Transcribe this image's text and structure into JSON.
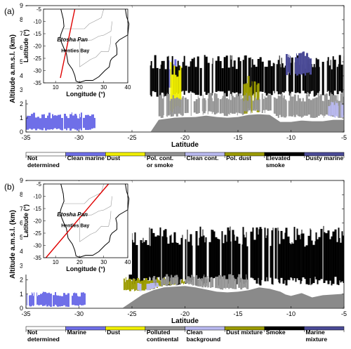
{
  "chart_data": [
    {
      "type": "heatmap",
      "panel_label": "(a)",
      "xlabel": "Latitude",
      "ylabel": "Altitude a.m.s.l. (km)",
      "xlim": [
        -35,
        -5
      ],
      "ylim": [
        0,
        9
      ],
      "xticks": [
        -35,
        -30,
        -25,
        -20,
        -15,
        -10,
        -5
      ],
      "yticks": [
        0,
        1,
        2,
        3,
        4,
        5,
        6,
        7,
        8,
        9
      ],
      "terrain": {
        "lat": [
          -35,
          -25,
          -23.3,
          -22.5,
          -21,
          -20,
          -19,
          -18,
          -17,
          -16,
          -15,
          -14,
          -13,
          -12,
          -11.5,
          -11,
          -10,
          -9,
          -8,
          -7,
          -6,
          -5
        ],
        "alt": [
          0,
          0,
          0.0,
          0.9,
          1.05,
          1.08,
          1.1,
          1.2,
          1.1,
          1.05,
          1.1,
          1.25,
          1.3,
          1.25,
          1.0,
          0.75,
          0.75,
          0.85,
          0.8,
          0.8,
          0.9,
          0.9
        ]
      },
      "layers": [
        {
          "class": "Clean marine",
          "lat_range": [
            -35,
            -28.5
          ],
          "alt_range": [
            0.1,
            1.4
          ]
        },
        {
          "class": "Clean marine",
          "lat_range": [
            -21.6,
            -21.0
          ],
          "alt_range": [
            3.0,
            5.2
          ]
        },
        {
          "class": "Elevated smoke",
          "lat_range": [
            -23.3,
            -5
          ],
          "alt_range": [
            2.5,
            5.5
          ]
        },
        {
          "class": "Dust",
          "lat_range": [
            -21.4,
            -20.4
          ],
          "alt_range": [
            1.3,
            5.3
          ]
        },
        {
          "class": "Pol. dust",
          "lat_range": [
            -14.5,
            -13.0
          ],
          "alt_range": [
            1.3,
            4.0
          ]
        },
        {
          "class": "Pol. cont. or smoke",
          "lat_range": [
            -22.5,
            -5
          ],
          "alt_range": [
            1.0,
            2.8
          ]
        },
        {
          "class": "Dusty marine",
          "lat_range": [
            -10.5,
            -8.0
          ],
          "alt_range": [
            4.0,
            5.8
          ]
        },
        {
          "class": "Clean cont.",
          "lat_range": [
            -6.5,
            -5.2
          ],
          "alt_range": [
            1.0,
            2.2
          ]
        }
      ],
      "inset": {
        "xlabel": "Longitude (°)",
        "ylabel": "Latitude (°)",
        "xlim": [
          5,
          40
        ],
        "ylim": [
          -35,
          -5
        ],
        "xticks": [
          10,
          20,
          30,
          40
        ],
        "yticks": [
          -5,
          -10,
          -15,
          -20,
          -25,
          -30,
          -35
        ],
        "labels": [
          "Etosha Pan",
          "Henties Bay"
        ],
        "track": {
          "lon": [
            12.0,
            18.0
          ],
          "lat": [
            -33.0,
            -5.0
          ]
        }
      },
      "legend": [
        "Not determined",
        "Clean marine",
        "Dust",
        "Pol. cont. or smoke",
        "Clean cont.",
        "Pol. dust",
        "Elevated smoke",
        "Dusty marine"
      ]
    },
    {
      "type": "heatmap",
      "panel_label": "(b)",
      "xlabel": "Latitude",
      "ylabel": "Altitude a.m.s.l. (km)",
      "xlim": [
        -35,
        -5
      ],
      "ylim": [
        0,
        9
      ],
      "xticks": [
        -35,
        -30,
        -25,
        -20,
        -15,
        -10,
        -5
      ],
      "yticks": [
        0,
        1,
        2,
        3,
        4,
        5,
        6,
        7,
        8,
        9
      ],
      "terrain": {
        "lat": [
          -35,
          -26,
          -25,
          -24,
          -23,
          -22,
          -21,
          -20,
          -19,
          -18,
          -17,
          -16,
          -15,
          -14,
          -13,
          -12,
          -11,
          -10.5,
          -10,
          -9,
          -8,
          -7,
          -6,
          -5
        ],
        "alt": [
          0,
          0,
          0.5,
          1.0,
          1.3,
          1.5,
          1.55,
          1.6,
          1.5,
          1.35,
          1.2,
          1.15,
          1.2,
          1.3,
          1.5,
          1.4,
          1.2,
          1.0,
          0.9,
          1.1,
          0.8,
          0.95,
          1.0,
          1.05
        ]
      },
      "layers": [
        {
          "class": "Marine",
          "lat_range": [
            -35,
            -29.5
          ],
          "alt_range": [
            0.1,
            1.2
          ]
        },
        {
          "class": "Smoke",
          "lat_range": [
            -25.3,
            -5
          ],
          "alt_range": [
            1.6,
            5.8
          ]
        },
        {
          "class": "Dust mixture",
          "lat_range": [
            -25.8,
            -20
          ],
          "alt_range": [
            1.2,
            2.2
          ]
        },
        {
          "class": "Polluted continental",
          "lat_range": [
            -23,
            -14
          ],
          "alt_range": [
            1.3,
            2.4
          ]
        },
        {
          "class": "Clean background",
          "lat_range": [
            -24.5,
            -22.5
          ],
          "alt_range": [
            1.2,
            1.8
          ]
        }
      ],
      "inset": {
        "xlabel": "Longitude (°)",
        "ylabel": "Latitude (°)",
        "xlim": [
          5,
          40
        ],
        "ylim": [
          -35,
          -5
        ],
        "xticks": [
          10,
          20,
          30,
          40
        ],
        "yticks": [
          -5,
          -10,
          -15,
          -20,
          -25,
          -30,
          -35
        ],
        "labels": [
          "Etosha Pan",
          "Henties Bay"
        ],
        "track": {
          "lon": [
            6.0,
            32.0
          ],
          "lat": [
            -35.0,
            -5.0
          ]
        }
      },
      "legend": [
        "Not determined",
        "Marine",
        "Dust",
        "Polluted continental",
        "Clean background",
        "Dust mixture",
        "Smoke",
        "Marine mixture"
      ]
    }
  ],
  "colors": {
    "Not determined": "#ffffff",
    "Clean marine": "#6f6fe8",
    "Marine": "#6f6fe8",
    "Dust": "#f1f000",
    "Pol. cont. or smoke": "#949494",
    "Polluted continental": "#949494",
    "Clean cont.": "#b9b9ef",
    "Clean background": "#b9b9ef",
    "Pol. dust": "#9b9b00",
    "Dust mixture": "#9b9b00",
    "Elevated smoke": "#000000",
    "Smoke": "#000000",
    "Dusty marine": "#4a4a96",
    "Marine mixture": "#4a4a96",
    "terrain": "#8a8a8a",
    "track": "#e00000"
  }
}
